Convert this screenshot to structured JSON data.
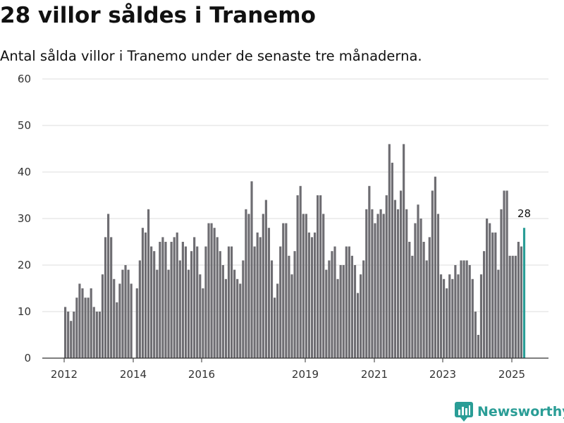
{
  "title": "28 villor såldes i Tranemo",
  "subtitle": "Antal sålda villor i Tranemo under de senaste tre månaderna.",
  "brand": {
    "name": "Newsworthy",
    "icon": "newsworthy-logo-icon",
    "color": "#2a9d96"
  },
  "chart_data": {
    "type": "bar",
    "ylim": [
      0,
      60
    ],
    "yticks": [
      0,
      10,
      20,
      30,
      40,
      50,
      60
    ],
    "xtick_labels": [
      "2012",
      "2014",
      "2016",
      "2019",
      "2021",
      "2023",
      "2025"
    ],
    "grid": true,
    "bar_color": "#6e6d72",
    "highlight_color": "#2a9d96",
    "highlight_label": "28",
    "values": [
      11,
      10,
      8,
      10,
      13,
      16,
      15,
      13,
      13,
      15,
      11,
      10,
      10,
      18,
      26,
      31,
      26,
      17,
      12,
      16,
      19,
      20,
      19,
      16,
      0,
      15,
      21,
      28,
      27,
      32,
      24,
      23,
      19,
      25,
      26,
      25,
      19,
      25,
      26,
      27,
      21,
      25,
      24,
      19,
      23,
      26,
      24,
      18,
      15,
      24,
      29,
      29,
      28,
      26,
      23,
      20,
      17,
      24,
      24,
      19,
      17,
      16,
      21,
      32,
      31,
      38,
      24,
      27,
      26,
      31,
      34,
      28,
      21,
      13,
      16,
      24,
      29,
      29,
      22,
      18,
      23,
      35,
      37,
      31,
      31,
      27,
      26,
      27,
      35,
      35,
      31,
      19,
      21,
      23,
      24,
      17,
      20,
      20,
      24,
      24,
      22,
      20,
      14,
      18,
      21,
      32,
      37,
      32,
      29,
      31,
      32,
      31,
      35,
      46,
      42,
      34,
      32,
      36,
      46,
      32,
      25,
      22,
      29,
      33,
      30,
      25,
      21,
      26,
      36,
      39,
      31,
      18,
      17,
      15,
      18,
      17,
      20,
      18,
      21,
      21,
      21,
      20,
      17,
      10,
      5,
      18,
      23,
      30,
      29,
      27,
      27,
      19,
      32,
      36,
      36,
      22,
      22,
      22,
      25,
      24,
      28
    ]
  }
}
